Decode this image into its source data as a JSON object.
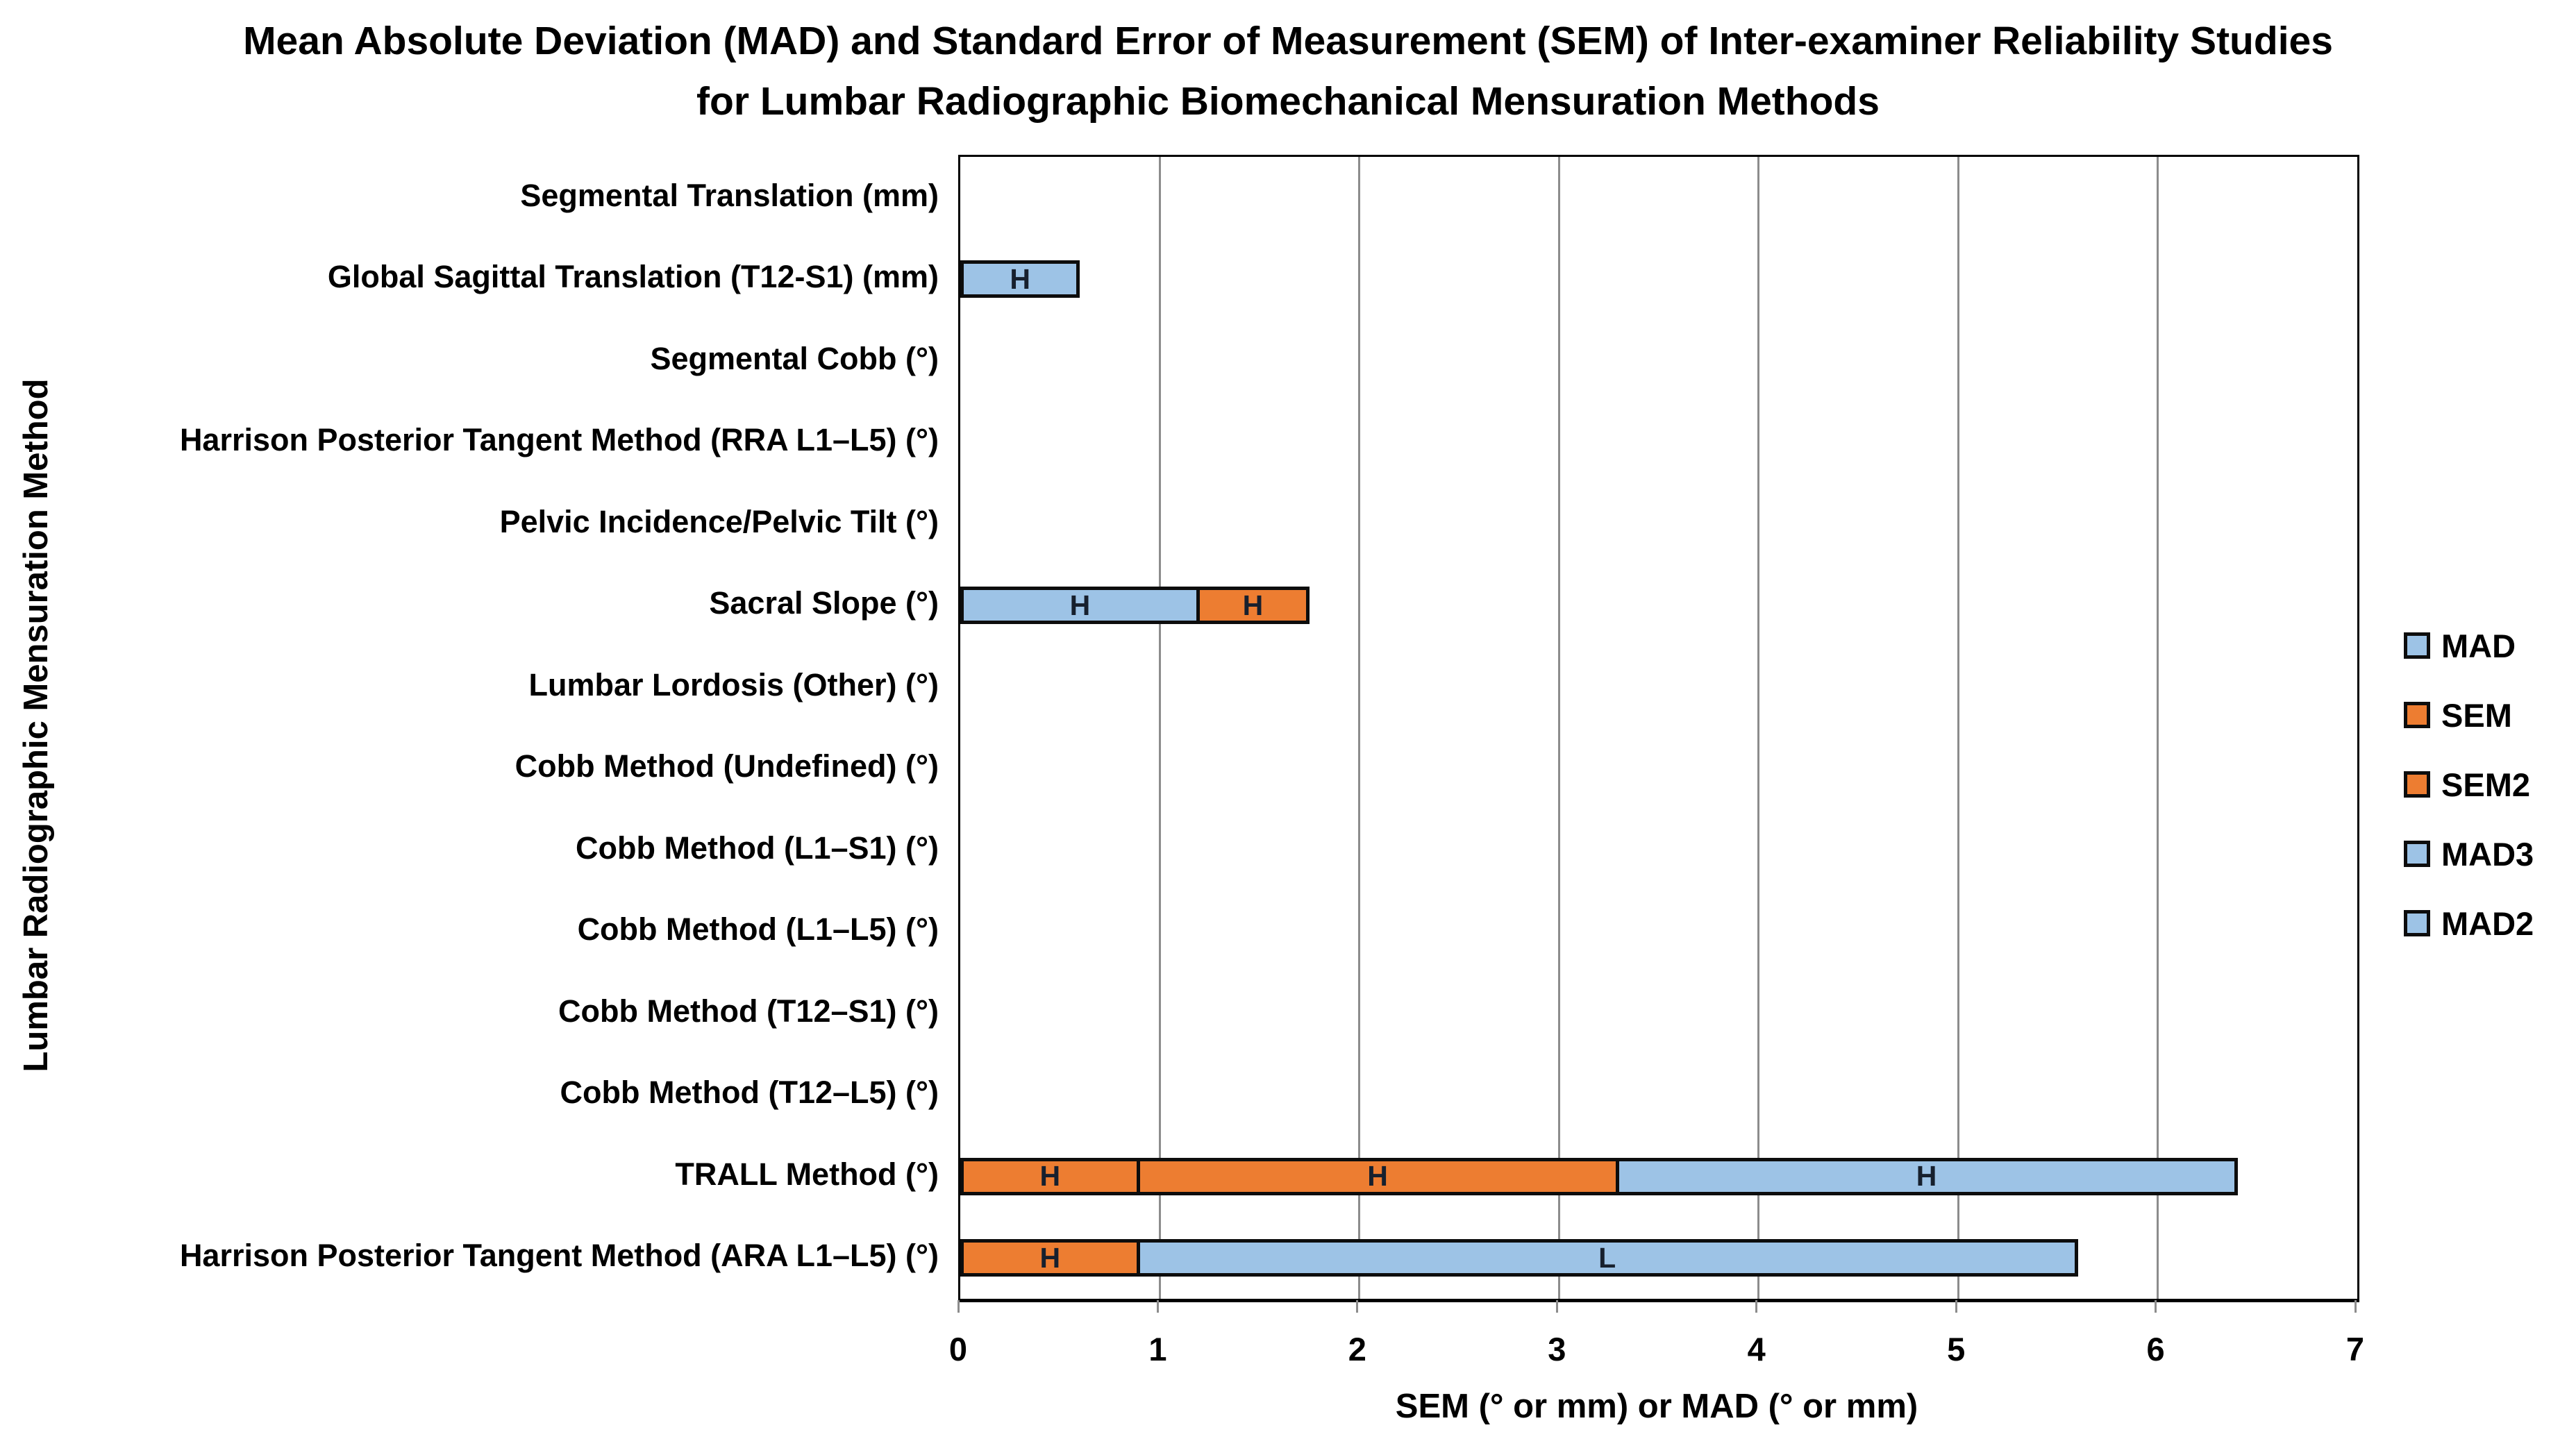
{
  "chart_data": {
    "type": "bar",
    "orientation": "horizontal",
    "stacked": true,
    "title": "Mean Absolute Deviation (MAD) and Standard Error of Measurement (SEM) of Inter-examiner Reliability Studies for Lumbar Radiographic Biomechanical Mensuration Methods",
    "xlabel": "SEM (° or mm) or MAD (° or mm)",
    "ylabel": "Lumbar Radiographic Mensuration Method",
    "xlim": [
      0,
      7
    ],
    "xticks": [
      "0",
      "1",
      "2",
      "3",
      "4",
      "5",
      "6",
      "7"
    ],
    "grid": "vertical gridlines at each unit",
    "legend_position": "right-center",
    "legend": [
      {
        "name": "MAD",
        "color": "#9DC3E6"
      },
      {
        "name": "SEM",
        "color": "#ED7D31"
      },
      {
        "name": "SEM2",
        "color": "#ED7D31"
      },
      {
        "name": "MAD3",
        "color": "#9DC3E6"
      },
      {
        "name": "MAD2",
        "color": "#9DC3E6"
      }
    ],
    "categories": [
      "Segmental Translation (mm)",
      "Global Sagittal Translation (T12-S1) (mm)",
      "Segmental Cobb (°)",
      "Harrison Posterior Tangent Method (RRA L1–L5) (°)",
      "Pelvic Incidence/Pelvic Tilt (°)",
      "Sacral Slope (°)",
      "Lumbar Lordosis (Other) (°)",
      "Cobb Method (Undefined) (°)",
      "Cobb Method (L1–S1) (°)",
      "Cobb Method (L1–L5) (°)",
      "Cobb Method (T12–S1) (°)",
      "Cobb Method (T12–L5) (°)",
      "TRALL Method (°)",
      "Harrison Posterior Tangent Method (ARA L1–L5) (°)"
    ],
    "rows": [
      {
        "category": "Segmental Translation (mm)",
        "segments": []
      },
      {
        "category": "Global Sagittal Translation (T12-S1) (mm)",
        "segments": [
          {
            "series": "MAD",
            "value": 0.6,
            "label": "H"
          }
        ]
      },
      {
        "category": "Segmental Cobb (°)",
        "segments": []
      },
      {
        "category": "Harrison Posterior Tangent Method (RRA L1–L5) (°)",
        "segments": []
      },
      {
        "category": "Pelvic Incidence/Pelvic Tilt (°)",
        "segments": []
      },
      {
        "category": "Sacral Slope (°)",
        "segments": [
          {
            "series": "MAD",
            "value": 1.2,
            "label": "H"
          },
          {
            "series": "SEM",
            "value": 0.55,
            "label": "H"
          }
        ]
      },
      {
        "category": "Lumbar Lordosis (Other) (°)",
        "segments": []
      },
      {
        "category": "Cobb Method (Undefined) (°)",
        "segments": []
      },
      {
        "category": "Cobb Method (L1–S1) (°)",
        "segments": []
      },
      {
        "category": "Cobb Method (L1–L5) (°)",
        "segments": []
      },
      {
        "category": "Cobb Method (T12–S1) (°)",
        "segments": []
      },
      {
        "category": "Cobb Method (T12–L5) (°)",
        "segments": []
      },
      {
        "category": "TRALL Method (°)",
        "segments": [
          {
            "series": "SEM",
            "value": 0.9,
            "label": "H"
          },
          {
            "series": "SEM2",
            "value": 2.4,
            "label": "H"
          },
          {
            "series": "MAD3",
            "value": 3.1,
            "label": "H"
          }
        ]
      },
      {
        "category": "Harrison Posterior Tangent Method (ARA L1–L5) (°)",
        "segments": [
          {
            "series": "SEM",
            "value": 0.9,
            "label": "H"
          },
          {
            "series": "MAD2",
            "value": 4.7,
            "label": "L"
          }
        ]
      }
    ]
  }
}
